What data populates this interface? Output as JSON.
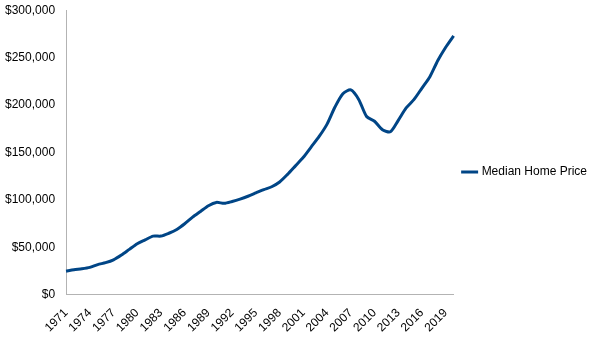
{
  "chart_data": {
    "type": "line",
    "categories": [
      "1971",
      null,
      null,
      "1974",
      null,
      null,
      "1977",
      null,
      null,
      "1980",
      null,
      null,
      "1983",
      null,
      null,
      "1986",
      null,
      null,
      "1989",
      null,
      null,
      "1992",
      null,
      null,
      "1995",
      null,
      null,
      "1998",
      null,
      null,
      "2001",
      null,
      null,
      "2004",
      null,
      null,
      "2007",
      null,
      null,
      "2010",
      null,
      null,
      "2013",
      null,
      null,
      "2016",
      null,
      null,
      "2019",
      null
    ],
    "series": [
      {
        "name": "Median Home Price",
        "color": "#004586",
        "values": [
          25000,
          26500,
          27500,
          29000,
          32000,
          34000,
          37000,
          42000,
          48000,
          54000,
          58000,
          62000,
          62000,
          65000,
          69000,
          75000,
          82000,
          88000,
          94000,
          97500,
          96500,
          98500,
          101000,
          104000,
          107500,
          111000,
          114000,
          119000,
          127000,
          136000,
          145000,
          156000,
          167000,
          180000,
          198000,
          212000,
          216000,
          206000,
          188000,
          183000,
          174000,
          172000,
          184000,
          197000,
          206000,
          218000,
          230000,
          247000,
          261000,
          273000
        ]
      }
    ],
    "ylim": [
      0,
      300000
    ],
    "yticks": [
      {
        "value": 0,
        "label": "$0"
      },
      {
        "value": 50000,
        "label": "$50,000"
      },
      {
        "value": 100000,
        "label": "$100,000"
      },
      {
        "value": 150000,
        "label": "$150,000"
      },
      {
        "value": 200000,
        "label": "$200,000"
      },
      {
        "value": 250000,
        "label": "$250,000"
      },
      {
        "value": 300000,
        "label": "$300,000"
      }
    ],
    "grid": false,
    "legend": "right"
  }
}
